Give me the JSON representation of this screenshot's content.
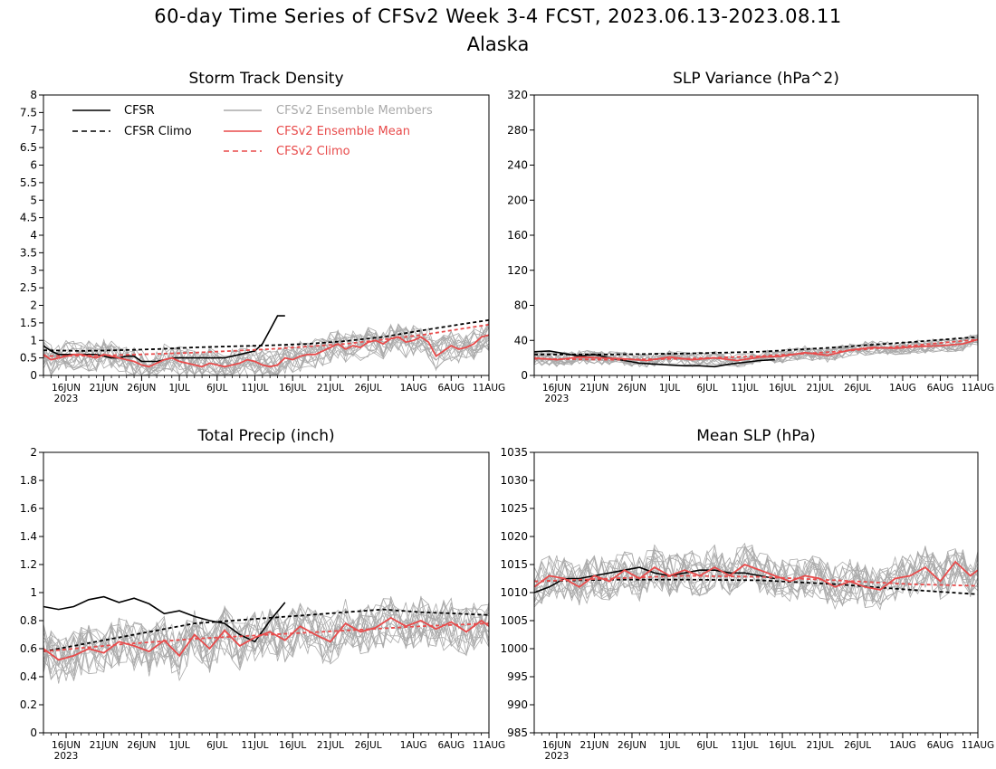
{
  "header": {
    "title": "60-day Time Series of CFSv2 Week 3-4 FCST, 2023.06.13-2023.08.11",
    "region": "Alaska"
  },
  "colors": {
    "cfsr": "#000000",
    "members": "#aaaaaa",
    "ens_mean": "#e84b4b",
    "cfsv2_climo": "#e84b4b"
  },
  "legend": {
    "items": [
      {
        "label": "CFSR",
        "style": "solid",
        "color": "#000000"
      },
      {
        "label": "CFSR Climo",
        "style": "dashed",
        "color": "#000000"
      },
      {
        "label": "CFSv2 Ensemble Members",
        "style": "solid",
        "color": "#aaaaaa"
      },
      {
        "label": "CFSv2 Ensemble Mean",
        "style": "solid",
        "color": "#e84b4b"
      },
      {
        "label": "CFSv2 Climo",
        "style": "dashed",
        "color": "#e84b4b"
      }
    ]
  },
  "x_axis": {
    "ticks": [
      {
        "day": 3,
        "label": "16JUN"
      },
      {
        "day": 8,
        "label": "21JUN"
      },
      {
        "day": 13,
        "label": "26JUN"
      },
      {
        "day": 18,
        "label": "1JUL"
      },
      {
        "day": 23,
        "label": "6JUL"
      },
      {
        "day": 28,
        "label": "11JUL"
      },
      {
        "day": 33,
        "label": "16JUL"
      },
      {
        "day": 38,
        "label": "21JUL"
      },
      {
        "day": 43,
        "label": "26JUL"
      },
      {
        "day": 49,
        "label": "1AUG"
      },
      {
        "day": 54,
        "label": "6AUG"
      },
      {
        "day": 59,
        "label": "11AUG"
      }
    ],
    "year_label": "2023",
    "range_days": [
      0,
      59
    ]
  },
  "chart_data": [
    {
      "type": "line",
      "title": "Storm Track Density",
      "ylim": [
        0,
        8
      ],
      "yticks": [
        "0",
        "0.5",
        "1",
        "1.5",
        "2",
        "2.5",
        "3",
        "3.5",
        "4",
        "4.5",
        "5",
        "5.5",
        "6",
        "6.5",
        "7",
        "7.5",
        "8"
      ],
      "series": [
        {
          "name": "CFSR",
          "x_days": [
            0,
            1,
            2,
            3,
            4,
            5,
            6,
            7,
            8,
            9,
            10,
            11,
            12,
            13,
            14,
            15,
            16,
            17,
            18,
            19,
            20,
            21,
            22,
            23,
            24,
            25,
            26,
            27,
            28,
            29,
            30,
            31,
            32
          ],
          "values": [
            0.85,
            0.7,
            0.6,
            0.6,
            0.6,
            0.6,
            0.6,
            0.6,
            0.55,
            0.5,
            0.5,
            0.55,
            0.55,
            0.4,
            0.4,
            0.4,
            0.45,
            0.5,
            0.5,
            0.5,
            0.5,
            0.5,
            0.5,
            0.5,
            0.5,
            0.55,
            0.6,
            0.65,
            0.7,
            0.9,
            1.3,
            1.7,
            1.7
          ]
        },
        {
          "name": "CFSR Climo",
          "x_days": [
            0,
            5,
            10,
            15,
            20,
            25,
            30,
            35,
            40,
            45,
            50,
            55,
            59
          ],
          "values": [
            0.72,
            0.7,
            0.72,
            0.75,
            0.8,
            0.83,
            0.86,
            0.9,
            0.98,
            1.1,
            1.28,
            1.45,
            1.58
          ]
        },
        {
          "name": "CFSv2 Ensemble Mean",
          "x_days": [
            0,
            1,
            2,
            3,
            4,
            5,
            6,
            7,
            8,
            9,
            10,
            11,
            12,
            13,
            14,
            15,
            16,
            17,
            18,
            19,
            20,
            21,
            22,
            23,
            24,
            25,
            26,
            27,
            28,
            29,
            30,
            31,
            32,
            33,
            34,
            35,
            36,
            37,
            38,
            39,
            40,
            41,
            42,
            43,
            44,
            45,
            46,
            47,
            48,
            49,
            50,
            51,
            52,
            53,
            54,
            55,
            56,
            57,
            58,
            59
          ],
          "values": [
            0.6,
            0.45,
            0.5,
            0.55,
            0.6,
            0.6,
            0.55,
            0.5,
            0.6,
            0.55,
            0.5,
            0.45,
            0.4,
            0.3,
            0.25,
            0.35,
            0.45,
            0.5,
            0.4,
            0.35,
            0.3,
            0.25,
            0.35,
            0.3,
            0.25,
            0.3,
            0.35,
            0.45,
            0.4,
            0.3,
            0.25,
            0.3,
            0.5,
            0.45,
            0.55,
            0.6,
            0.6,
            0.7,
            0.8,
            0.9,
            0.75,
            0.85,
            0.8,
            0.95,
            1.0,
            0.9,
            1.05,
            1.1,
            0.95,
            1.0,
            1.1,
            0.95,
            0.55,
            0.7,
            0.85,
            0.75,
            0.8,
            0.9,
            1.1,
            1.15
          ]
        },
        {
          "name": "CFSv2 Climo",
          "x_days": [
            0,
            10,
            20,
            30,
            40,
            50,
            59
          ],
          "values": [
            0.55,
            0.58,
            0.65,
            0.75,
            0.9,
            1.15,
            1.45
          ]
        }
      ],
      "members": {
        "center": "CFSv2 Ensemble Mean",
        "count": 16,
        "spread": 0.45,
        "min": 0
      }
    },
    {
      "type": "line",
      "title": "SLP Variance (hPa^2)",
      "ylim": [
        0,
        320
      ],
      "yticks": [
        "0",
        "40",
        "80",
        "120",
        "160",
        "200",
        "240",
        "280",
        "320"
      ],
      "series": [
        {
          "name": "CFSR",
          "x_days": [
            0,
            2,
            4,
            6,
            8,
            10,
            12,
            14,
            16,
            18,
            20,
            22,
            24,
            26,
            28,
            30,
            32
          ],
          "values": [
            27,
            28,
            25,
            22,
            24,
            20,
            17,
            14,
            13,
            12,
            11,
            11,
            10,
            13,
            15,
            17,
            18
          ]
        },
        {
          "name": "CFSR Climo",
          "x_days": [
            0,
            10,
            20,
            30,
            40,
            50,
            59
          ],
          "values": [
            24,
            24,
            25,
            27,
            32,
            38,
            44
          ]
        },
        {
          "name": "CFSv2 Ensemble Mean",
          "x_days": [
            0,
            3,
            6,
            9,
            12,
            15,
            18,
            21,
            24,
            27,
            30,
            33,
            36,
            39,
            42,
            45,
            48,
            51,
            54,
            57,
            59
          ],
          "values": [
            20,
            18,
            21,
            20,
            19,
            17,
            21,
            18,
            20,
            17,
            21,
            22,
            26,
            23,
            29,
            32,
            31,
            33,
            34,
            36,
            41
          ]
        },
        {
          "name": "CFSv2 Climo",
          "x_days": [
            0,
            10,
            20,
            30,
            40,
            50,
            59
          ],
          "values": [
            19,
            18,
            19,
            22,
            27,
            34,
            41
          ]
        }
      ],
      "members": {
        "center": "CFSv2 Ensemble Mean",
        "count": 16,
        "spread": 8,
        "min": 0
      }
    },
    {
      "type": "line",
      "title": "Total Precip (inch)",
      "ylim": [
        0,
        2
      ],
      "yticks": [
        "0",
        "0.2",
        "0.4",
        "0.6",
        "0.8",
        "1",
        "1.2",
        "1.4",
        "1.6",
        "1.8",
        "2"
      ],
      "series": [
        {
          "name": "CFSR",
          "x_days": [
            0,
            2,
            4,
            6,
            8,
            10,
            12,
            14,
            16,
            18,
            20,
            22,
            24,
            26,
            28,
            30,
            32
          ],
          "values": [
            0.9,
            0.88,
            0.9,
            0.95,
            0.97,
            0.93,
            0.96,
            0.92,
            0.85,
            0.87,
            0.83,
            0.8,
            0.78,
            0.7,
            0.65,
            0.8,
            0.93
          ]
        },
        {
          "name": "CFSR Climo",
          "x_days": [
            0,
            10,
            20,
            30,
            40,
            45,
            50,
            55,
            59
          ],
          "values": [
            0.58,
            0.68,
            0.78,
            0.82,
            0.86,
            0.88,
            0.86,
            0.85,
            0.84
          ]
        },
        {
          "name": "CFSv2 Ensemble Mean",
          "x_days": [
            0,
            2,
            4,
            6,
            8,
            10,
            12,
            14,
            16,
            18,
            20,
            22,
            24,
            26,
            28,
            30,
            32,
            34,
            36,
            38,
            40,
            42,
            44,
            46,
            48,
            50,
            52,
            54,
            56,
            58,
            59
          ],
          "values": [
            0.6,
            0.52,
            0.55,
            0.6,
            0.57,
            0.65,
            0.62,
            0.58,
            0.66,
            0.55,
            0.7,
            0.6,
            0.73,
            0.62,
            0.68,
            0.72,
            0.66,
            0.76,
            0.7,
            0.65,
            0.78,
            0.72,
            0.75,
            0.82,
            0.76,
            0.8,
            0.74,
            0.79,
            0.72,
            0.8,
            0.76
          ]
        },
        {
          "name": "CFSv2 Climo",
          "x_days": [
            0,
            10,
            20,
            30,
            40,
            50,
            59
          ],
          "values": [
            0.58,
            0.63,
            0.67,
            0.7,
            0.73,
            0.76,
            0.78
          ]
        }
      ],
      "members": {
        "center": "CFSv2 Ensemble Mean",
        "count": 16,
        "spread": 0.18,
        "min": 0
      }
    },
    {
      "type": "line",
      "title": "Mean SLP (hPa)",
      "ylim": [
        985,
        1035
      ],
      "yticks": [
        "985",
        "990",
        "995",
        "1000",
        "1005",
        "1010",
        "1015",
        "1020",
        "1025",
        "1030",
        "1035"
      ],
      "series": [
        {
          "name": "CFSR",
          "x_days": [
            0,
            2,
            4,
            6,
            8,
            10,
            12,
            14,
            16,
            18,
            20,
            22,
            24,
            26,
            28,
            30,
            32
          ],
          "values": [
            1010,
            1011,
            1012.5,
            1012.5,
            1013,
            1013.5,
            1014,
            1014.5,
            1013.5,
            1013,
            1013.5,
            1014,
            1014,
            1013.5,
            1013.5,
            1013,
            1012.5
          ]
        },
        {
          "name": "CFSR Climo",
          "x_days": [
            0,
            10,
            20,
            30,
            40,
            50,
            59
          ],
          "values": [
            1012,
            1012.3,
            1012.3,
            1012.2,
            1011.5,
            1010.5,
            1009.7
          ]
        },
        {
          "name": "CFSv2 Ensemble Mean",
          "x_days": [
            0,
            2,
            4,
            6,
            8,
            10,
            12,
            14,
            16,
            18,
            20,
            22,
            24,
            26,
            28,
            30,
            32,
            34,
            36,
            38,
            40,
            42,
            44,
            46,
            48,
            50,
            52,
            54,
            56,
            58,
            59
          ],
          "values": [
            1011,
            1013,
            1012.5,
            1011,
            1013,
            1012,
            1014,
            1012.5,
            1014.5,
            1013,
            1014,
            1013,
            1014.5,
            1013,
            1015,
            1014,
            1013,
            1012,
            1013,
            1012.5,
            1011,
            1012,
            1011,
            1010.5,
            1012.5,
            1013,
            1014.5,
            1012,
            1015.5,
            1013,
            1014
          ]
        },
        {
          "name": "CFSv2 Climo",
          "x_days": [
            0,
            10,
            20,
            30,
            40,
            50,
            59
          ],
          "values": [
            1012,
            1012.5,
            1013,
            1012.8,
            1012.2,
            1011.5,
            1011.2
          ]
        }
      ],
      "members": {
        "center": "CFSv2 Ensemble Mean",
        "count": 16,
        "spread": 4,
        "min": 985
      }
    }
  ]
}
